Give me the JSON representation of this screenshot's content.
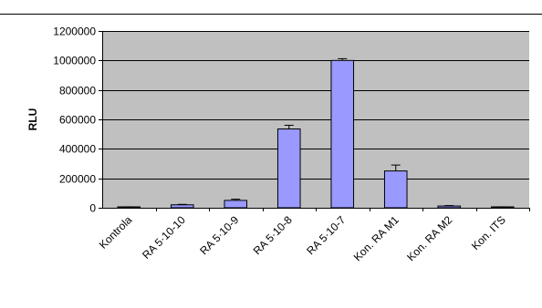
{
  "colors": {
    "plot_background": "#c0c0c0",
    "bar_fill": "#9999ff",
    "bar_stroke": "#000000",
    "gridline": "#000000",
    "top_rule": "#000000"
  },
  "chart_data": {
    "type": "bar",
    "title": "",
    "xlabel": "",
    "ylabel": "RLU",
    "ylim": [
      0,
      1200000
    ],
    "yticks": [
      0,
      200000,
      400000,
      600000,
      800000,
      1000000,
      1200000
    ],
    "ytick_labels": [
      "0",
      "200000",
      "400000",
      "600000",
      "800000",
      "1000000",
      "1200000"
    ],
    "grid": true,
    "legend": "none",
    "categories": [
      "Kontrola",
      "RA 5·10-10",
      "RA 5·10-9",
      "RA 5·10-8",
      "RA 5·10-7",
      "Kon. RA M1",
      "Kon. RA M2",
      "Kon. ITS"
    ],
    "series": [
      {
        "values": [
          5000,
          20000,
          50000,
          535000,
          1000000,
          250000,
          12000,
          5000
        ],
        "errors": [
          1500,
          3000,
          8000,
          25000,
          12000,
          40000,
          3000,
          1500
        ]
      }
    ]
  }
}
